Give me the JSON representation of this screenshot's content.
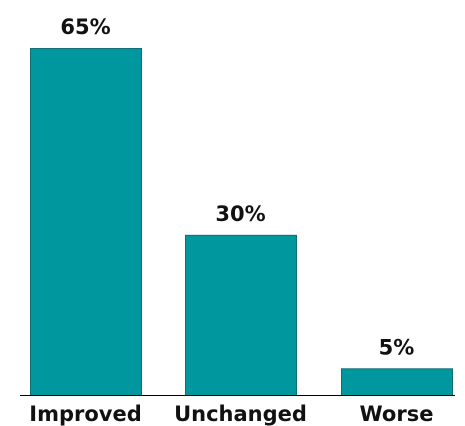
{
  "chart_data": {
    "type": "bar",
    "categories": [
      "Improved",
      "Unchanged",
      "Worse"
    ],
    "values": [
      65,
      30,
      5
    ],
    "value_labels": [
      "65%",
      "30%",
      "5%"
    ],
    "title": "",
    "xlabel": "",
    "ylabel": "",
    "ylim": [
      0,
      65
    ],
    "grid": false,
    "legend": "none",
    "colors": {
      "bar": "#00979E",
      "text": "#111111"
    }
  }
}
